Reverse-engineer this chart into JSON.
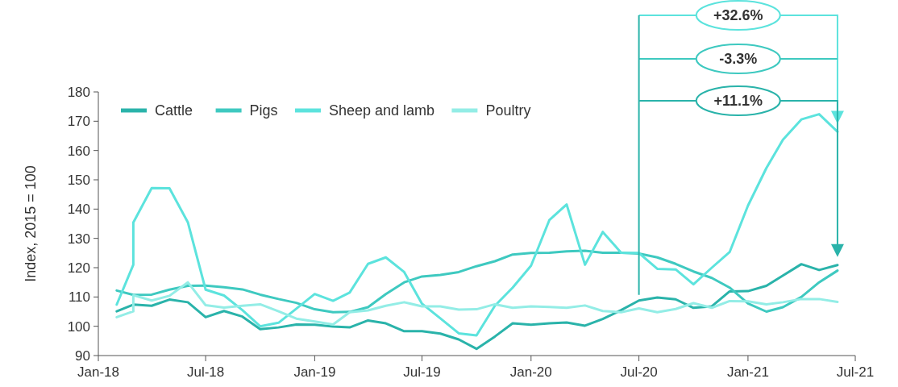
{
  "chart_data": {
    "type": "line",
    "ylabel": "Index, 2015 = 100",
    "x": [
      "2018-02",
      "2018-03",
      "2018-04",
      "2018-05",
      "2018-06",
      "2018-07",
      "2018-08",
      "2018-09",
      "2018-10",
      "2018-11",
      "2018-12",
      "2019-01",
      "2019-02",
      "2019-03",
      "2019-04",
      "2019-05",
      "2019-06",
      "2019-07",
      "2019-08",
      "2019-09",
      "2019-10",
      "2019-11",
      "2019-12",
      "2020-01",
      "2020-02",
      "2020-03",
      "2020-04",
      "2020-05",
      "2020-06",
      "2020-07",
      "2020-08",
      "2020-09",
      "2020-10",
      "2020-11",
      "2020-12",
      "2021-01",
      "2021-02",
      "2021-03",
      "2021-04",
      "2021-05",
      "2021-06"
    ],
    "series": [
      {
        "name": "Cattle",
        "color": "#2ab3aa",
        "values": [
          105.1,
          107.4,
          107.0,
          109.1,
          108.2,
          103.1,
          105.2,
          103.3,
          99.0,
          99.6,
          100.6,
          100.5,
          99.9,
          99.6,
          102.0,
          101.0,
          98.3,
          98.3,
          97.5,
          95.5,
          92.3,
          96.5,
          101.0,
          100.5,
          101.0,
          101.3,
          100.2,
          102.5,
          105.5,
          108.8,
          109.8,
          109.2,
          106.3,
          106.8,
          111.9,
          112.0,
          113.8,
          117.3,
          121.2,
          119.2,
          120.9
        ]
      },
      {
        "name": "Pigs",
        "color": "#3ec9c0",
        "values": [
          112.2,
          110.7,
          110.8,
          112.5,
          113.8,
          113.9,
          113.3,
          112.6,
          110.8,
          109.3,
          108.0,
          105.8,
          104.8,
          104.9,
          106.5,
          111.0,
          115.0,
          117.0,
          117.5,
          118.5,
          120.5,
          122.2,
          124.5,
          125.0,
          125.1,
          125.6,
          125.8,
          125.1,
          125.1,
          124.8,
          123.5,
          121.3,
          118.7,
          116.5,
          113.2,
          107.8,
          105.0,
          106.5,
          110.0,
          115.0,
          119.0
        ]
      },
      {
        "name": "Sheep and lamb",
        "color": "#5ce3dd",
        "x": [
          "2018-02",
          "2018-03",
          "2018-03",
          "2018-04",
          "2018-05",
          "2018-06",
          "2018-07",
          "2018-08",
          "2018-09",
          "2018-10",
          "2018-11",
          "2018-12",
          "2019-01",
          "2019-02",
          "2019-03",
          "2019-04",
          "2019-05",
          "2019-06",
          "2019-07",
          "2019-08",
          "2019-09",
          "2019-10",
          "2019-11",
          "2019-12",
          "2020-01",
          "2020-02",
          "2020-03",
          "2020-04",
          "2020-05",
          "2020-06",
          "2020-07",
          "2020-08",
          "2020-09",
          "2020-10",
          "2020-11",
          "2020-12",
          "2021-01",
          "2021-02",
          "2021-03",
          "2021-04",
          "2021-05",
          "2021-06"
        ],
        "values": [
          107.4,
          121.0,
          135.4,
          147.2,
          147.1,
          135.5,
          112.5,
          110.5,
          105.5,
          100.0,
          101.2,
          106.0,
          111.0,
          108.7,
          111.5,
          121.3,
          123.5,
          118.5,
          107.7,
          102.7,
          97.6,
          96.9,
          107.0,
          113.2,
          120.7,
          136.3,
          141.6,
          121.0,
          132.2,
          125.1,
          125.0,
          119.6,
          119.4,
          114.3,
          120.0,
          125.3,
          141.2,
          154.0,
          163.7,
          170.6,
          172.4,
          166.4
        ]
      },
      {
        "name": "Poultry",
        "color": "#93ede6",
        "x": [
          "2018-02",
          "2018-03",
          "2018-03",
          "2018-04",
          "2018-05",
          "2018-06",
          "2018-07",
          "2018-08",
          "2018-09",
          "2018-10",
          "2018-11",
          "2018-12",
          "2019-01",
          "2019-02",
          "2019-03",
          "2019-04",
          "2019-05",
          "2019-06",
          "2019-07",
          "2019-08",
          "2019-09",
          "2019-10",
          "2019-11",
          "2019-12",
          "2020-01",
          "2020-02",
          "2020-03",
          "2020-04",
          "2020-05",
          "2020-06",
          "2020-07",
          "2020-08",
          "2020-09",
          "2020-10",
          "2020-11",
          "2020-12",
          "2021-01",
          "2021-02",
          "2021-03",
          "2021-04",
          "2021-05",
          "2021-06"
        ],
        "values": [
          103.1,
          105.1,
          110.6,
          108.8,
          110.4,
          115.0,
          107.2,
          106.4,
          107.0,
          107.5,
          105.1,
          102.6,
          101.6,
          100.6,
          104.8,
          105.4,
          107.0,
          108.2,
          106.8,
          106.8,
          105.7,
          105.8,
          107.5,
          106.3,
          106.8,
          106.6,
          106.3,
          107.1,
          105.2,
          104.8,
          106.1,
          104.8,
          105.9,
          107.9,
          106.3,
          108.6,
          108.5,
          107.5,
          108.2,
          109.3,
          109.3,
          108.3
        ]
      }
    ],
    "annotations": [
      "+32.6%",
      "-3.3%",
      "+11.1%"
    ],
    "ref_lines": [
      {
        "axis": "x",
        "value": "2020-07",
        "color": "#2ab3aa"
      }
    ],
    "xlim": [
      "2018-01",
      "2021-07"
    ],
    "xticks": [
      {
        "value": "2018-01",
        "label": "Jan-18"
      },
      {
        "value": "2018-07",
        "label": "Jul-18"
      },
      {
        "value": "2019-01",
        "label": "Jan-19"
      },
      {
        "value": "2019-07",
        "label": "Jul-19"
      },
      {
        "value": "2020-01",
        "label": "Jan-20"
      },
      {
        "value": "2020-07",
        "label": "Jul-20"
      },
      {
        "value": "2021-01",
        "label": "Jan-21"
      },
      {
        "value": "2021-07",
        "label": "Jul-21"
      }
    ],
    "ylim": [
      90,
      180
    ],
    "yticks": [
      90,
      100,
      110,
      120,
      130,
      140,
      150,
      160,
      170,
      180
    ],
    "legend": "top left",
    "grid": false,
    "marker": "none",
    "line_style": "solid"
  }
}
